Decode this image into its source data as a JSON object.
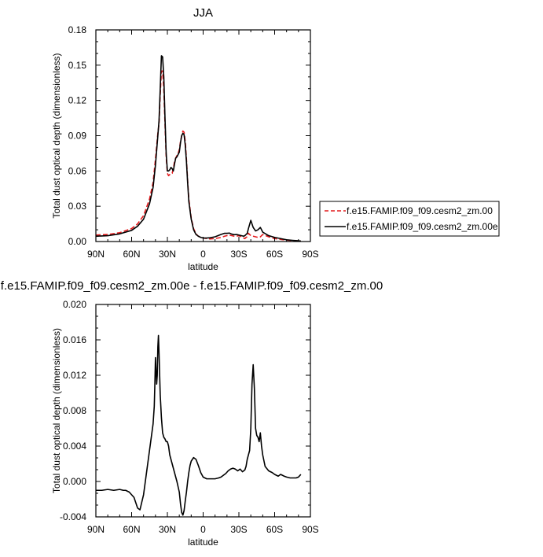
{
  "chart_data": [
    {
      "type": "line",
      "title": "JJA",
      "xlabel": "latitude",
      "ylabel": "Total dust optical depth (dimensionless)",
      "xlim": [
        -90,
        90
      ],
      "ylim": [
        0,
        0.18
      ],
      "xticks": [
        -90,
        -60,
        -30,
        0,
        30,
        60,
        90
      ],
      "xtick_labels": [
        "90N",
        "60N",
        "30N",
        "0",
        "30S",
        "60S",
        "90S"
      ],
      "yticks": [
        0,
        0.03,
        0.06,
        0.09,
        0.12,
        0.15,
        0.18
      ],
      "ytick_labels": [
        "0.00",
        "0.03",
        "0.06",
        "0.09",
        "0.12",
        "0.15",
        "0.18"
      ],
      "legend": {
        "placement": "right",
        "entries": [
          {
            "label": "f.e15.FAMIP.f09_f09.cesm2_zm.00",
            "color": "#e41a1c",
            "style": "dashed"
          },
          {
            "label": "f.e15.FAMIP.f09_f09.cesm2_zm.00e",
            "color": "#000000",
            "style": "solid"
          }
        ]
      },
      "series": [
        {
          "name": "f.e15.FAMIP.f09_f09.cesm2_zm.00",
          "color": "#e41a1c",
          "dash": "dashed",
          "x": [
            -90,
            -80,
            -70,
            -60,
            -55,
            -50,
            -45,
            -42,
            -40,
            -38,
            -37,
            -36,
            -35,
            -34,
            -33,
            -32,
            -31,
            -30,
            -29,
            -28,
            -27,
            -26,
            -25,
            -24,
            -23,
            -22,
            -21,
            -20,
            -19,
            -18,
            -17,
            -16,
            -15,
            -14,
            -13,
            -12,
            -10,
            -8,
            -6,
            -4,
            -2,
            0,
            3,
            6,
            10,
            15,
            18,
            20,
            22,
            24,
            26,
            28,
            30,
            32,
            34,
            35,
            36,
            37,
            38,
            40,
            42,
            44,
            46,
            48,
            50,
            55,
            60,
            65,
            70,
            75,
            80,
            82
          ],
          "y": [
            0.0055,
            0.006,
            0.0075,
            0.011,
            0.015,
            0.022,
            0.036,
            0.05,
            0.07,
            0.092,
            0.1,
            0.125,
            0.145,
            0.145,
            0.13,
            0.1,
            0.072,
            0.058,
            0.056,
            0.057,
            0.058,
            0.058,
            0.062,
            0.068,
            0.071,
            0.073,
            0.075,
            0.078,
            0.085,
            0.09,
            0.094,
            0.093,
            0.085,
            0.07,
            0.052,
            0.036,
            0.02,
            0.011,
            0.0065,
            0.0045,
            0.0035,
            0.003,
            0.0025,
            0.0022,
            0.0025,
            0.0035,
            0.0045,
            0.005,
            0.0055,
            0.005,
            0.0045,
            0.0045,
            0.005,
            0.004,
            0.003,
            0.0025,
            0.0035,
            0.004,
            0.007,
            0.005,
            0.0045,
            0.004,
            0.0035,
            0.004,
            0.006,
            0.004,
            0.0025,
            0.0018,
            0.0012,
            0.0008,
            0.0005,
            0.0003
          ]
        },
        {
          "name": "f.e15.FAMIP.f09_f09.cesm2_zm.00e",
          "color": "#000000",
          "dash": "solid",
          "x": [
            -90,
            -80,
            -70,
            -60,
            -55,
            -50,
            -45,
            -42,
            -40,
            -38,
            -37,
            -36,
            -35,
            -34,
            -33,
            -32,
            -31,
            -30,
            -29,
            -28,
            -27,
            -26,
            -25,
            -24,
            -23,
            -22,
            -21,
            -20,
            -19,
            -18,
            -17,
            -16,
            -15,
            -14,
            -13,
            -12,
            -10,
            -8,
            -6,
            -4,
            -2,
            0,
            3,
            6,
            10,
            15,
            18,
            20,
            22,
            24,
            26,
            28,
            30,
            32,
            34,
            35,
            36,
            37,
            38,
            40,
            42,
            44,
            46,
            48,
            50,
            55,
            60,
            65,
            70,
            75,
            80,
            82
          ],
          "y": [
            0.0045,
            0.005,
            0.0065,
            0.0095,
            0.013,
            0.019,
            0.032,
            0.046,
            0.065,
            0.09,
            0.103,
            0.13,
            0.158,
            0.157,
            0.14,
            0.105,
            0.075,
            0.06,
            0.06,
            0.061,
            0.063,
            0.062,
            0.06,
            0.066,
            0.071,
            0.072,
            0.074,
            0.076,
            0.084,
            0.09,
            0.092,
            0.091,
            0.082,
            0.068,
            0.05,
            0.034,
            0.019,
            0.01,
            0.006,
            0.0045,
            0.0035,
            0.003,
            0.003,
            0.0032,
            0.004,
            0.006,
            0.007,
            0.007,
            0.0072,
            0.0063,
            0.0058,
            0.006,
            0.0055,
            0.005,
            0.0045,
            0.005,
            0.006,
            0.007,
            0.011,
            0.018,
            0.012,
            0.009,
            0.01,
            0.012,
            0.008,
            0.005,
            0.0035,
            0.0025,
            0.0015,
            0.001,
            0.0006,
            0.0004
          ]
        }
      ]
    },
    {
      "type": "line",
      "title": "f.e15.FAMIP.f09_f09.cesm2_zm.00e - f.e15.FAMIP.f09_f09.cesm2_zm.00",
      "xlabel": "latitude",
      "ylabel": "Total dust optical depth (dimensionless)",
      "xlim": [
        -90,
        90
      ],
      "ylim": [
        -0.004,
        0.02
      ],
      "xticks": [
        -90,
        -60,
        -30,
        0,
        30,
        60,
        90
      ],
      "xtick_labels": [
        "90N",
        "60N",
        "30N",
        "0",
        "30S",
        "60S",
        "90S"
      ],
      "yticks": [
        -0.004,
        0,
        0.004,
        0.008,
        0.012,
        0.016,
        0.02
      ],
      "ytick_labels": [
        "-0.004",
        "0.000",
        "0.004",
        "0.008",
        "0.012",
        "0.016",
        "0.020"
      ],
      "series": [
        {
          "color": "#000000",
          "dash": "solid",
          "x": [
            -90,
            -85,
            -80,
            -75,
            -70,
            -67,
            -65,
            -62,
            -58,
            -55,
            -53,
            -50,
            -48,
            -46,
            -44,
            -42,
            -41,
            -40.5,
            -40,
            -39.5,
            -39,
            -38.5,
            -38,
            -37.5,
            -37,
            -36,
            -35,
            -34,
            -33,
            -32,
            -31,
            -30,
            -29,
            -28,
            -26,
            -24,
            -22,
            -20,
            -19,
            -18,
            -17,
            -16,
            -15,
            -14,
            -13,
            -12,
            -11,
            -10,
            -8,
            -6,
            -4,
            -2,
            0,
            3,
            6,
            10,
            13,
            15,
            17,
            19,
            21,
            23,
            25,
            27,
            29,
            31,
            33,
            35,
            36,
            37,
            38,
            39,
            40,
            41,
            42,
            43,
            44,
            45,
            46,
            47,
            48,
            49,
            50,
            52,
            55,
            58,
            60,
            63,
            65,
            68,
            70,
            73,
            75,
            78,
            80,
            82
          ],
          "y": [
            -0.001,
            -0.001,
            -0.0009,
            -0.001,
            -0.0009,
            -0.001,
            -0.001,
            -0.0012,
            -0.0018,
            -0.003,
            -0.0032,
            -0.0015,
            0.0005,
            0.0025,
            0.0045,
            0.0065,
            0.0085,
            0.011,
            0.014,
            0.0125,
            0.011,
            0.012,
            0.0152,
            0.0165,
            0.0145,
            0.0098,
            0.0072,
            0.0055,
            0.005,
            0.0048,
            0.0045,
            0.0045,
            0.004,
            0.003,
            0.002,
            0.001,
            0.0,
            -0.0012,
            -0.0025,
            -0.0035,
            -0.0038,
            -0.0033,
            -0.0022,
            -0.0012,
            0.0,
            0.001,
            0.0018,
            0.0023,
            0.0027,
            0.0025,
            0.0018,
            0.001,
            0.0005,
            0.0003,
            0.0003,
            0.0003,
            0.0004,
            0.0005,
            0.0007,
            0.0009,
            0.0012,
            0.0014,
            0.0015,
            0.0014,
            0.0012,
            0.0014,
            0.0011,
            0.0013,
            0.0017,
            0.0025,
            0.003,
            0.0035,
            0.006,
            0.011,
            0.0132,
            0.0105,
            0.006,
            0.0052,
            0.005,
            0.0045,
            0.0055,
            0.004,
            0.003,
            0.0017,
            0.0012,
            0.001,
            0.0008,
            0.0006,
            0.0008,
            0.0006,
            0.0005,
            0.0004,
            0.0004,
            0.0004,
            0.0005,
            0.0008
          ]
        }
      ]
    }
  ]
}
